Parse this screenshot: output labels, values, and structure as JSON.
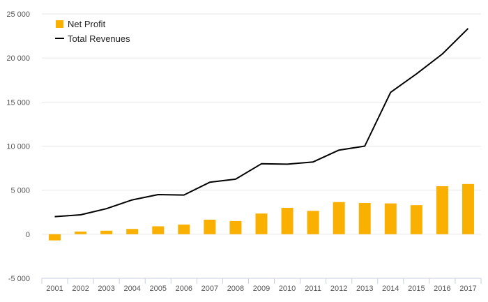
{
  "chart_data": {
    "type": "bar",
    "title": "",
    "xlabel": "",
    "ylabel": "",
    "categories": [
      "2001",
      "2002",
      "2003",
      "2004",
      "2005",
      "2006",
      "2007",
      "2008",
      "2009",
      "2010",
      "2011",
      "2012",
      "2013",
      "2014",
      "2015",
      "2016",
      "2017"
    ],
    "ylim": [
      -5000,
      25000
    ],
    "yticks": [
      -5000,
      0,
      5000,
      10000,
      15000,
      20000,
      25000
    ],
    "ytick_labels": [
      "-5 000",
      "0",
      "5 000",
      "10 000",
      "15 000",
      "20 000",
      "25 000"
    ],
    "grid": true,
    "legend_position": "top-left",
    "series": [
      {
        "name": "Net Profit",
        "type": "bar",
        "color": "#f9b000",
        "values": [
          -700,
          300,
          400,
          600,
          900,
          1100,
          1650,
          1500,
          2350,
          3000,
          2650,
          3650,
          3550,
          3500,
          3300,
          5450,
          5700
        ]
      },
      {
        "name": "Total Revenues",
        "type": "line",
        "color": "#000000",
        "values": [
          2000,
          2200,
          2900,
          3900,
          4500,
          4450,
          5900,
          6250,
          8000,
          7950,
          8200,
          9550,
          10000,
          16100,
          18200,
          20450,
          23350
        ]
      }
    ]
  }
}
